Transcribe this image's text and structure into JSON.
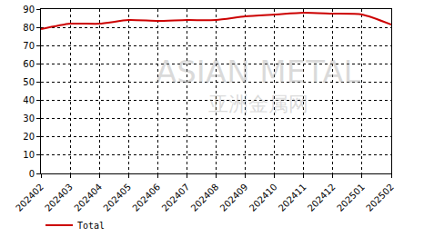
{
  "chart_data": {
    "type": "line",
    "categories": [
      "202402",
      "202403",
      "202404",
      "202405",
      "202406",
      "202407",
      "202408",
      "202409",
      "202410",
      "202411",
      "202412",
      "202501",
      "202502"
    ],
    "series": [
      {
        "name": "Total",
        "color": "#cc0000",
        "values": [
          79,
          82,
          82,
          84,
          83.5,
          84,
          84,
          86,
          87,
          88,
          87.5,
          87,
          81.5
        ]
      }
    ],
    "ylim": [
      0,
      90
    ],
    "yticks": [
      0,
      10,
      20,
      30,
      40,
      50,
      60,
      70,
      80,
      90
    ],
    "grid": true,
    "legend": "bottom left",
    "annotations": [
      "ASIAN METAL",
      "亚洲金属网"
    ]
  }
}
